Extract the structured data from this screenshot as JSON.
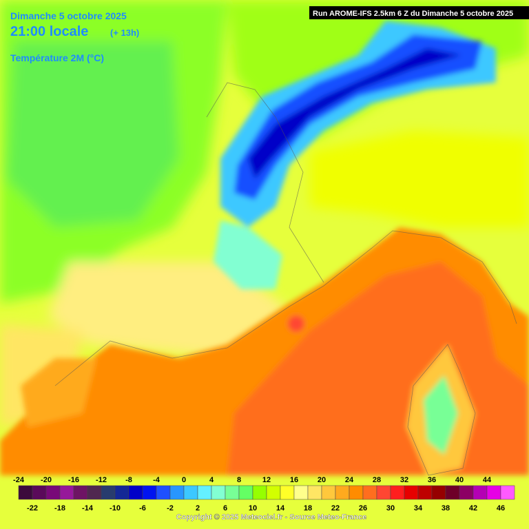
{
  "header": {
    "date": "Dimanche 5 octobre 2025",
    "time": "21:00 locale",
    "offset": "(+ 13h)",
    "variable": "Température 2M (°C)",
    "run": "Run AROME-IFS 2.5km 6 Z du Dimanche 5 octobre 2025"
  },
  "legend": {
    "values": [
      -24,
      -22,
      -20,
      -18,
      -16,
      -14,
      -12,
      -10,
      -8,
      -6,
      -4,
      -2,
      0,
      2,
      4,
      6,
      8,
      10,
      12,
      14,
      16,
      18,
      20,
      22,
      24,
      26,
      28,
      30,
      32,
      34,
      36,
      38,
      40,
      42,
      44,
      46
    ],
    "colors": [
      "#3c0a3c",
      "#5a0a5a",
      "#780a78",
      "#96189a",
      "#6e1464",
      "#502850",
      "#283c6e",
      "#142896",
      "#0000c8",
      "#0014f0",
      "#1e50ff",
      "#2896ff",
      "#3cc8ff",
      "#64f0ff",
      "#82ffd2",
      "#78ff96",
      "#64ff64",
      "#96ff00",
      "#d2ff00",
      "#ffff28",
      "#ffff8c",
      "#ffe664",
      "#ffc83c",
      "#ffaa1e",
      "#ff8c00",
      "#ff6e1e",
      "#ff4632",
      "#ff1e1e",
      "#e60000",
      "#be0000",
      "#960000",
      "#6e0028",
      "#8c0064",
      "#b400b4",
      "#e600e6",
      "#ff5aff"
    ]
  },
  "footer": "Copyright © 2025 Meteociel.fr - Source Meteo-France"
}
